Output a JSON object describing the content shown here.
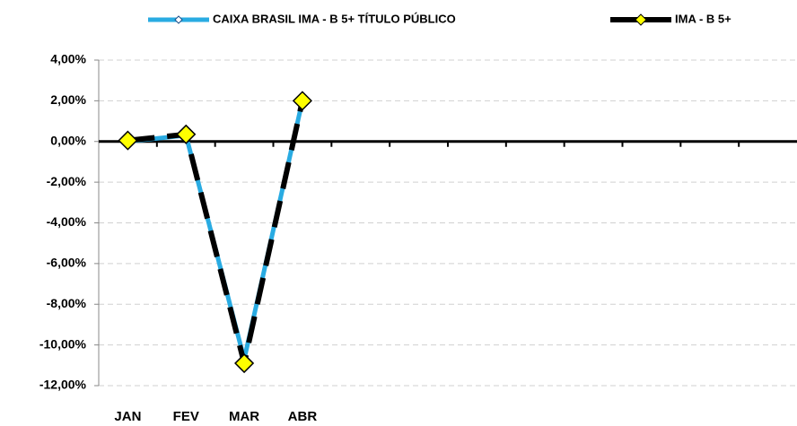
{
  "chart_data": {
    "type": "line",
    "categories": [
      "JAN",
      "FEV",
      "MAR",
      "ABR",
      null,
      null,
      null,
      null,
      null,
      null,
      null,
      null
    ],
    "series": [
      {
        "name": "CAIXA BRASIL IMA - B 5+ TÍTULO PÚBLICO",
        "color": "#29abe2",
        "values": [
          0.0,
          0.3,
          -10.7,
          2.0,
          null,
          null,
          null,
          null,
          null,
          null,
          null,
          null
        ]
      },
      {
        "name": "IMA - B 5+",
        "color": "#000000",
        "marker_color": "#ffff00",
        "values": [
          0.05,
          0.35,
          -10.9,
          2.0,
          null,
          null,
          null,
          null,
          null,
          null,
          null,
          null
        ]
      }
    ],
    "ylim": [
      -12,
      4
    ],
    "yticks": [
      {
        "value": 4,
        "label": "4,00%"
      },
      {
        "value": 2,
        "label": "2,00%"
      },
      {
        "value": 0,
        "label": "0,00%"
      },
      {
        "value": -2,
        "label": "-2,00%"
      },
      {
        "value": -4,
        "label": "-4,00%"
      },
      {
        "value": -6,
        "label": "-6,00%"
      },
      {
        "value": -8,
        "label": "-8,00%"
      },
      {
        "value": -10,
        "label": "-10,00%"
      },
      {
        "value": -12,
        "label": "-12,00%"
      }
    ],
    "grid": true,
    "legend": "top"
  }
}
